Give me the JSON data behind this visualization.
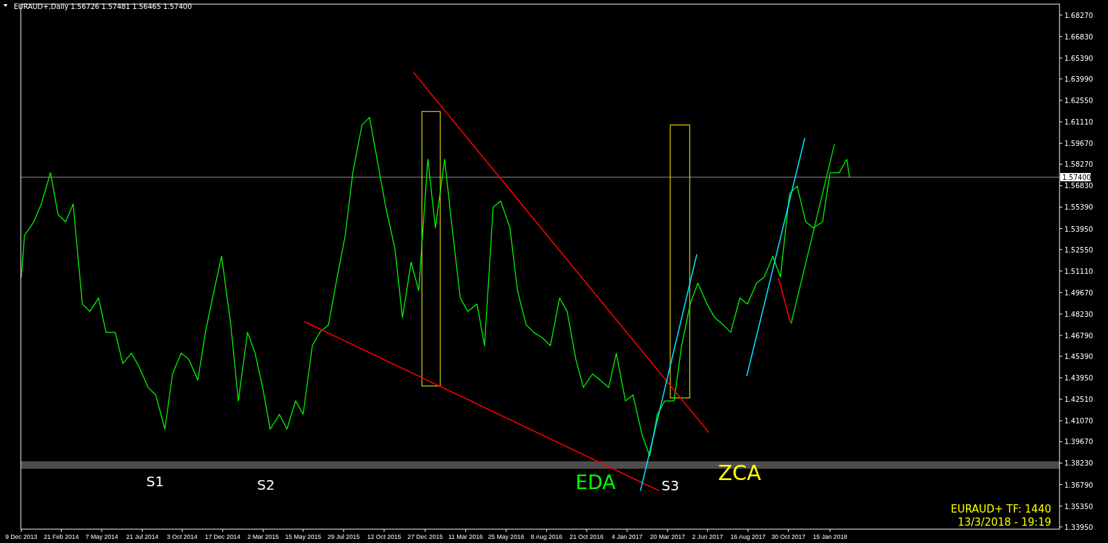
{
  "chart_data": {
    "type": "line",
    "title": "EURAUD+,Daily  1.56726 1.57481 1.56465 1.57400",
    "x": [
      "2013-12-09",
      "2013-12-15",
      "2014-01-01",
      "2014-01-15",
      "2014-02-01",
      "2014-02-15",
      "2014-03-01",
      "2014-03-15",
      "2014-04-01",
      "2014-04-15",
      "2014-05-01",
      "2014-05-15",
      "2014-06-01",
      "2014-06-15",
      "2014-07-01",
      "2014-07-15",
      "2014-08-01",
      "2014-08-15",
      "2014-09-01",
      "2014-09-15",
      "2014-10-01",
      "2014-10-15",
      "2014-11-01",
      "2014-11-15",
      "2014-12-01",
      "2014-12-15",
      "2015-01-01",
      "2015-01-15",
      "2015-02-01",
      "2015-02-15",
      "2015-03-01",
      "2015-03-15",
      "2015-04-01",
      "2015-04-15",
      "2015-05-01",
      "2015-05-15",
      "2015-06-01",
      "2015-06-15",
      "2015-07-01",
      "2015-07-15",
      "2015-08-01",
      "2015-08-15",
      "2015-09-01",
      "2015-09-15",
      "2015-10-01",
      "2015-10-15",
      "2015-11-01",
      "2015-11-15",
      "2015-12-01",
      "2015-12-15",
      "2016-01-01",
      "2016-01-15",
      "2016-02-01",
      "2016-02-15",
      "2016-03-01",
      "2016-03-15",
      "2016-04-01",
      "2016-04-15",
      "2016-05-01",
      "2016-05-15",
      "2016-06-01",
      "2016-06-15",
      "2016-07-01",
      "2016-07-15",
      "2016-08-01",
      "2016-08-15",
      "2016-09-01",
      "2016-09-15",
      "2016-10-01",
      "2016-10-15",
      "2016-11-01",
      "2016-11-15",
      "2016-12-01",
      "2016-12-15",
      "2017-01-01",
      "2017-01-15",
      "2017-02-01",
      "2017-02-15",
      "2017-03-01",
      "2017-03-15",
      "2017-04-01",
      "2017-04-15",
      "2017-05-01",
      "2017-05-15",
      "2017-06-01",
      "2017-06-15",
      "2017-07-01",
      "2017-07-15",
      "2017-08-01",
      "2017-08-15",
      "2017-09-01",
      "2017-09-15",
      "2017-10-01",
      "2017-10-15",
      "2017-11-01",
      "2017-11-15",
      "2017-12-01",
      "2017-12-15",
      "2018-01-01",
      "2018-01-15",
      "2018-02-01",
      "2018-02-15",
      "2018-02-20"
    ],
    "series": [
      {
        "color": "#00ff00",
        "values": [
          1.507,
          1.535,
          1.544,
          1.556,
          1.577,
          1.549,
          1.544,
          1.556,
          1.489,
          1.484,
          1.493,
          1.47,
          1.47,
          1.449,
          1.456,
          1.447,
          1.433,
          1.428,
          1.405,
          1.442,
          1.456,
          1.452,
          1.438,
          1.47,
          1.498,
          1.521,
          1.475,
          1.424,
          1.47,
          1.456,
          1.433,
          1.405,
          1.415,
          1.405,
          1.424,
          1.415,
          1.461,
          1.47,
          1.475,
          1.503,
          1.535,
          1.577,
          1.609,
          1.614,
          1.582,
          1.554,
          1.526,
          1.48,
          1.517,
          1.498,
          1.586,
          1.54,
          1.586,
          1.54,
          1.493,
          1.484,
          1.489,
          1.461,
          1.554,
          1.558,
          1.54,
          1.498,
          1.475,
          1.47,
          1.466,
          1.461,
          1.493,
          1.484,
          1.452,
          1.433,
          1.442,
          1.438,
          1.433,
          1.456,
          1.424,
          1.428,
          1.401,
          1.387,
          1.415,
          1.424,
          1.424,
          1.461,
          1.489,
          1.503,
          1.489,
          1.48,
          1.475,
          1.47,
          1.493,
          1.489,
          1.503,
          1.507,
          1.521,
          1.507,
          1.563,
          1.568,
          1.544,
          1.54,
          1.544,
          1.577,
          1.577,
          1.586,
          1.574
        ]
      },
      {
        "type": "line",
        "color": "#ff0000",
        "x": [
          "2015-12-06",
          "2017-06-04"
        ],
        "values": [
          1.644,
          1.403
        ]
      },
      {
        "type": "line",
        "color": "#ff0000",
        "x": [
          "2015-05-18",
          "2017-03-03"
        ],
        "values": [
          1.477,
          1.364
        ]
      },
      {
        "type": "line",
        "color": "#00e5ff",
        "x": [
          "2017-01-29",
          "2017-05-13"
        ],
        "values": [
          1.364,
          1.522
        ]
      },
      {
        "type": "line",
        "color": "#00e5ff",
        "x": [
          "2017-08-14",
          "2017-11-29"
        ],
        "values": [
          1.441,
          1.6
        ]
      },
      {
        "type": "line",
        "color": "#00d000",
        "x": [
          "2017-11-04",
          "2018-01-23"
        ],
        "values": [
          1.476,
          1.596
        ]
      },
      {
        "type": "line",
        "color": "#ff0000",
        "x": [
          "2017-10-12",
          "2017-11-02"
        ],
        "values": [
          1.506,
          1.477
        ]
      }
    ],
    "xlim": [
      "2013-12-08",
      "2019-03-16"
    ],
    "xticks": [
      {
        "value": "2013-12-09",
        "label": "9 Dec 2013"
      },
      {
        "value": "2014-02-21",
        "label": "21 Feb 2014"
      },
      {
        "value": "2014-05-07",
        "label": "7 May 2014"
      },
      {
        "value": "2014-07-21",
        "label": "21 Jul 2014"
      },
      {
        "value": "2014-10-03",
        "label": "3 Oct 2014"
      },
      {
        "value": "2014-12-17",
        "label": "17 Dec 2014"
      },
      {
        "value": "2015-03-02",
        "label": "2 Mar 2015"
      },
      {
        "value": "2015-05-15",
        "label": "15 May 2015"
      },
      {
        "value": "2015-07-29",
        "label": "29 Jul 2015"
      },
      {
        "value": "2015-10-12",
        "label": "12 Oct 2015"
      },
      {
        "value": "2015-12-27",
        "label": "27 Dec 2015"
      },
      {
        "value": "2016-03-11",
        "label": "11 Mar 2016"
      },
      {
        "value": "2016-05-25",
        "label": "25 May 2016"
      },
      {
        "value": "2016-08-08",
        "label": "8 Aug 2016"
      },
      {
        "value": "2016-10-21",
        "label": "21 Oct 2016"
      },
      {
        "value": "2017-01-04",
        "label": "4 Jan 2017"
      },
      {
        "value": "2017-03-20",
        "label": "20 Mar 2017"
      },
      {
        "value": "2017-06-02",
        "label": "2 Jun 2017"
      },
      {
        "value": "2017-08-16",
        "label": "16 Aug 2017"
      },
      {
        "value": "2017-10-30",
        "label": "30 Oct 2017"
      },
      {
        "value": "2018-01-15",
        "label": "15 Jan 2018"
      }
    ],
    "ylim": [
      1.338,
      1.69
    ],
    "yticks": [
      {
        "value": 1.3395,
        "label": "1.33950"
      },
      {
        "value": 1.3535,
        "label": "1.35350"
      },
      {
        "value": 1.3679,
        "label": "1.36790"
      },
      {
        "value": 1.3823,
        "label": "1.38230"
      },
      {
        "value": 1.3967,
        "label": "1.39670"
      },
      {
        "value": 1.4107,
        "label": "1.41070"
      },
      {
        "value": 1.4251,
        "label": "1.42510"
      },
      {
        "value": 1.4395,
        "label": "1.43950"
      },
      {
        "value": 1.4539,
        "label": "1.45390"
      },
      {
        "value": 1.4679,
        "label": "1.46790"
      },
      {
        "value": 1.4823,
        "label": "1.48230"
      },
      {
        "value": 1.4967,
        "label": "1.49670"
      },
      {
        "value": 1.5111,
        "label": "1.51110"
      },
      {
        "value": 1.5255,
        "label": "1.52550"
      },
      {
        "value": 1.5395,
        "label": "1.53950"
      },
      {
        "value": 1.5539,
        "label": "1.55390"
      },
      {
        "value": 1.5683,
        "label": "1.56830"
      },
      {
        "value": 1.5827,
        "label": "1.58270"
      },
      {
        "value": 1.5967,
        "label": "1.59670"
      },
      {
        "value": 1.6111,
        "label": "1.61110"
      },
      {
        "value": 1.6255,
        "label": "1.62550"
      },
      {
        "value": 1.6399,
        "label": "1.63990"
      },
      {
        "value": 1.6539,
        "label": "1.65390"
      },
      {
        "value": 1.6683,
        "label": "1.66830"
      },
      {
        "value": 1.6827,
        "label": "1.68270"
      }
    ],
    "ref_lines": [
      {
        "axis": "y",
        "value": 1.574,
        "label": "1.57400",
        "color": "#8c96a0"
      }
    ],
    "bands": [
      {
        "axis": "y",
        "from": 1.3785,
        "to": 1.3835,
        "color": "#4d4d4d"
      }
    ],
    "annotations": [
      "S1",
      "S2",
      "S3",
      "EDA",
      "ZCA",
      "EURAUD+ TF: 1440",
      "13/3/2018 - 19:19"
    ],
    "grid": false,
    "line_style": "solid",
    "marker": "none"
  }
}
